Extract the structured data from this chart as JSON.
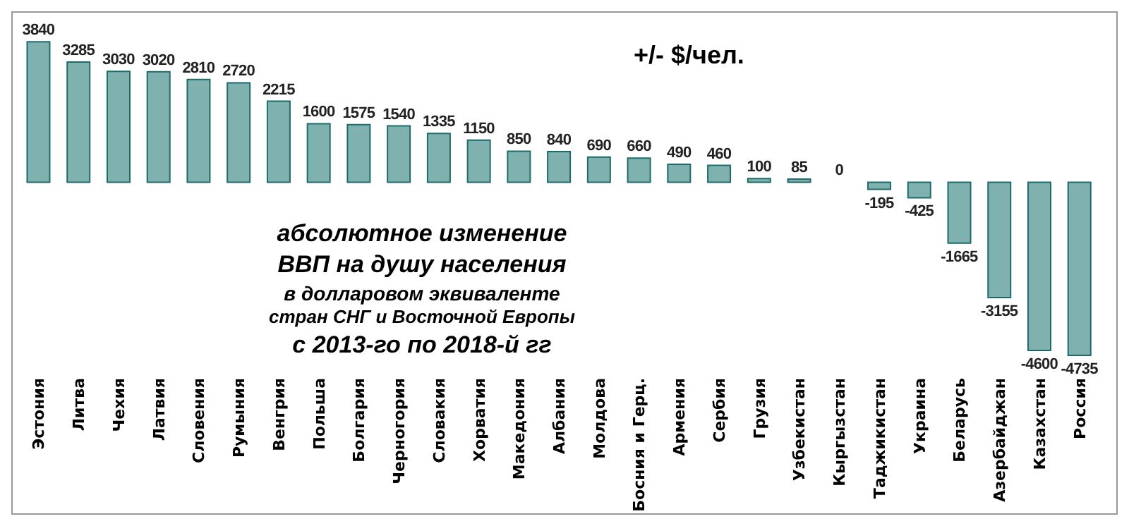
{
  "chart_data": {
    "type": "bar",
    "categories": [
      "Эстония",
      "Литва",
      "Чехия",
      "Латвия",
      "Словения",
      "Румыния",
      "Венгрия",
      "Польша",
      "Болгария",
      "Черногория",
      "Словакия",
      "Хорватия",
      "Македония",
      "Албания",
      "Молдова",
      "Босния  и Герц.",
      "Армения",
      "Сербия",
      "Грузия",
      "Узбекистан",
      "Кыргызстан",
      "Таджикистан",
      "Украина",
      "Беларусь",
      "Азербайджан",
      "Казахстан",
      "Россия"
    ],
    "values": [
      3840,
      3285,
      3030,
      3020,
      2810,
      2720,
      2215,
      1600,
      1575,
      1540,
      1335,
      1150,
      850,
      840,
      690,
      660,
      490,
      460,
      100,
      85,
      0,
      -195,
      -425,
      -1665,
      -3155,
      -4600,
      -4735
    ],
    "color": "#7fb2ae",
    "data_labels": true,
    "grid": false,
    "legend": false,
    "ylabel": "+/- $/чел.",
    "annotations": [
      "абсолютное изменение",
      "ВВП на душу населения",
      "в долларовом  эквиваленте",
      "стран СНГ и Восточной Европы",
      "с 2013-го по 2018-й гг"
    ]
  }
}
